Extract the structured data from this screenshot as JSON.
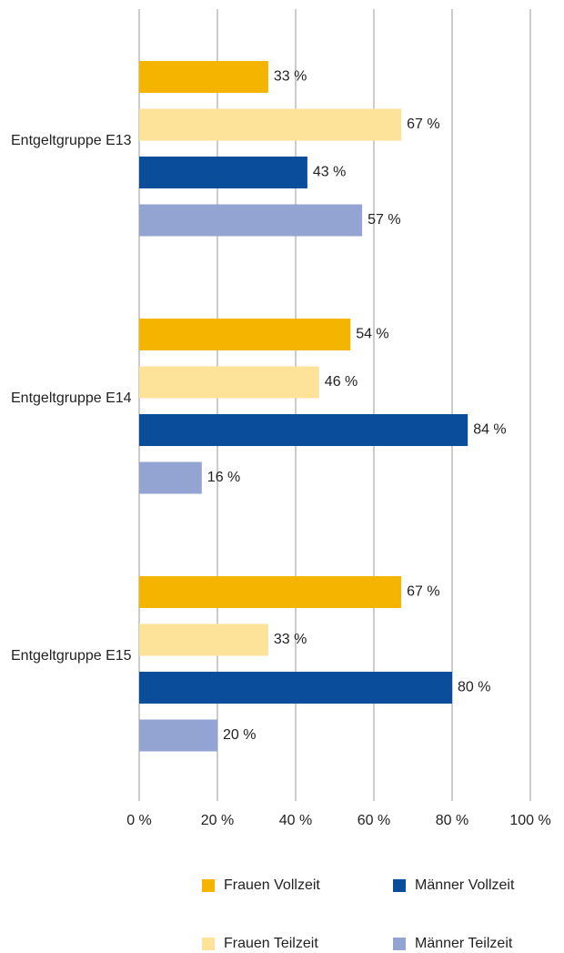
{
  "chart_data": {
    "type": "hbar",
    "categories": [
      "Entgeltgruppe E13",
      "Entgeltgruppe E14",
      "Entgeltgruppe E15"
    ],
    "series": [
      {
        "name": "Frauen Vollzeit",
        "color": "#f5b400",
        "values": [
          33,
          54,
          67
        ],
        "value_labels": [
          "33 %",
          "54 %",
          "67 %"
        ]
      },
      {
        "name": "Frauen Teilzeit",
        "color": "#fde29a",
        "values": [
          67,
          46,
          33
        ],
        "value_labels": [
          "67 %",
          "46 %",
          "33 %"
        ]
      },
      {
        "name": "Männer Vollzeit",
        "color": "#0a4d9b",
        "values": [
          43,
          84,
          80
        ],
        "value_labels": [
          "43 %",
          "84 %",
          "80 %"
        ]
      },
      {
        "name": "Männer Teilzeit",
        "color": "#93a3d2",
        "values": [
          57,
          16,
          20
        ],
        "value_labels": [
          "57 %",
          "16 %",
          "20 %"
        ]
      }
    ],
    "xlim": [
      0,
      100
    ],
    "xticks": [
      {
        "value": 0,
        "label": "0 %"
      },
      {
        "value": 20,
        "label": "20 %"
      },
      {
        "value": 40,
        "label": "40 %"
      },
      {
        "value": 60,
        "label": "60 %"
      },
      {
        "value": 80,
        "label": "80 %"
      },
      {
        "value": 100,
        "label": "100 %"
      }
    ],
    "grid": true
  }
}
